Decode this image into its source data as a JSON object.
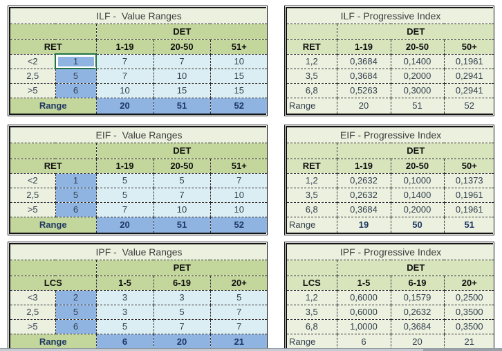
{
  "colors": {
    "title_bg": "#EBF1DE",
    "header_green_strong": "#C3D69B",
    "header_green_soft": "#D7E4BC",
    "label_bg": "#EBF1DE",
    "data_blue": "#DAEEF3",
    "key_blue": "#8FB4E2",
    "selection_green": "#217346",
    "grid_line": "#2b2b2b",
    "text_dark": "#333F50",
    "text_navy": "#1F3864",
    "scrollbar_track": "#c6ccd4",
    "scrollbar_thumb": "#9aa2ab",
    "page_bg": "#ffffff"
  },
  "tables": [
    {
      "kind": "value",
      "title": "ILF -  Value Ranges",
      "group_header": "DET",
      "row_header": "RET",
      "col_headers": [
        "1-19",
        "20-50",
        "51+"
      ],
      "rows": [
        {
          "label": "<2",
          "key": "1",
          "values": [
            "7",
            "7",
            "10"
          ],
          "selected_key": true
        },
        {
          "label": "2,5",
          "key": "5",
          "values": [
            "7",
            "10",
            "15"
          ],
          "selected_key": false
        },
        {
          "label": ">5",
          "key": "6",
          "values": [
            "10",
            "15",
            "15"
          ],
          "selected_key": false
        }
      ],
      "range": {
        "label": "Range",
        "values": [
          "20",
          "51",
          "52"
        ],
        "bold": true
      }
    },
    {
      "kind": "index",
      "title": "ILF - Progressive Index",
      "group_header": "DET",
      "row_header": "RET",
      "col_headers": [
        "1-19",
        "20-50",
        "50+"
      ],
      "rows": [
        {
          "label": "1,2",
          "values": [
            "0,3684",
            "0,1400",
            "0,1961"
          ]
        },
        {
          "label": "3,5",
          "values": [
            "0,3684",
            "0,2000",
            "0,2941"
          ]
        },
        {
          "label": "6,8",
          "values": [
            "0,5263",
            "0,3000",
            "0,2941"
          ]
        }
      ],
      "range": {
        "label": "Range",
        "values": [
          "20",
          "51",
          "52"
        ],
        "bold": false
      }
    },
    {
      "kind": "value",
      "title": "EIF -  Value Ranges",
      "group_header": "DET",
      "row_header": "RET",
      "col_headers": [
        "1-19",
        "20-50",
        "51+"
      ],
      "rows": [
        {
          "label": "<2",
          "key": "1",
          "values": [
            "5",
            "5",
            "7"
          ],
          "selected_key": false
        },
        {
          "label": "2,5",
          "key": "5",
          "values": [
            "5",
            "7",
            "10"
          ],
          "selected_key": false
        },
        {
          "label": ">5",
          "key": "6",
          "values": [
            "7",
            "10",
            "10"
          ],
          "selected_key": false
        }
      ],
      "range": {
        "label": "Range",
        "values": [
          "20",
          "51",
          "52"
        ],
        "bold": true
      }
    },
    {
      "kind": "index",
      "title": "EIF - Progressive Index",
      "group_header": "DET",
      "row_header": "RET",
      "col_headers": [
        "1-19",
        "20-50",
        "50+"
      ],
      "rows": [
        {
          "label": "1,2",
          "values": [
            "0,2632",
            "0,1000",
            "0,1373"
          ]
        },
        {
          "label": "3,5",
          "values": [
            "0,2632",
            "0,1400",
            "0,1961"
          ]
        },
        {
          "label": "6,8",
          "values": [
            "0,3684",
            "0,2000",
            "0,1961"
          ]
        }
      ],
      "range": {
        "label": "Range",
        "values": [
          "19",
          "50",
          "51"
        ],
        "bold": true
      }
    },
    {
      "kind": "value",
      "title": "IPF -  Value Ranges",
      "group_header": "PET",
      "row_header": "LCS",
      "col_headers": [
        "1-5",
        "6-19",
        "20+"
      ],
      "rows": [
        {
          "label": "<3",
          "key": "2",
          "values": [
            "3",
            "3",
            "5"
          ],
          "selected_key": false
        },
        {
          "label": "2,5",
          "key": "5",
          "values": [
            "3",
            "5",
            "7"
          ],
          "selected_key": false
        },
        {
          "label": ">5",
          "key": "6",
          "values": [
            "5",
            "7",
            "7"
          ],
          "selected_key": false
        }
      ],
      "range": {
        "label": "Range",
        "values": [
          "6",
          "20",
          "21"
        ],
        "bold": true
      }
    },
    {
      "kind": "index",
      "title": "IPF - Progressive Index",
      "group_header": "DET",
      "row_header": "LCS",
      "col_headers": [
        "1-5",
        "6-19",
        "20+"
      ],
      "rows": [
        {
          "label": "1,2",
          "values": [
            "0,6000",
            "0,1579",
            "0,2500"
          ]
        },
        {
          "label": "3,5",
          "values": [
            "0,6000",
            "0,2632",
            "0,3500"
          ]
        },
        {
          "label": "6,8",
          "values": [
            "1,0000",
            "0,3684",
            "0,3500"
          ]
        }
      ],
      "range": {
        "label": "Range",
        "values": [
          "6",
          "20",
          "21"
        ],
        "bold": false
      }
    }
  ]
}
